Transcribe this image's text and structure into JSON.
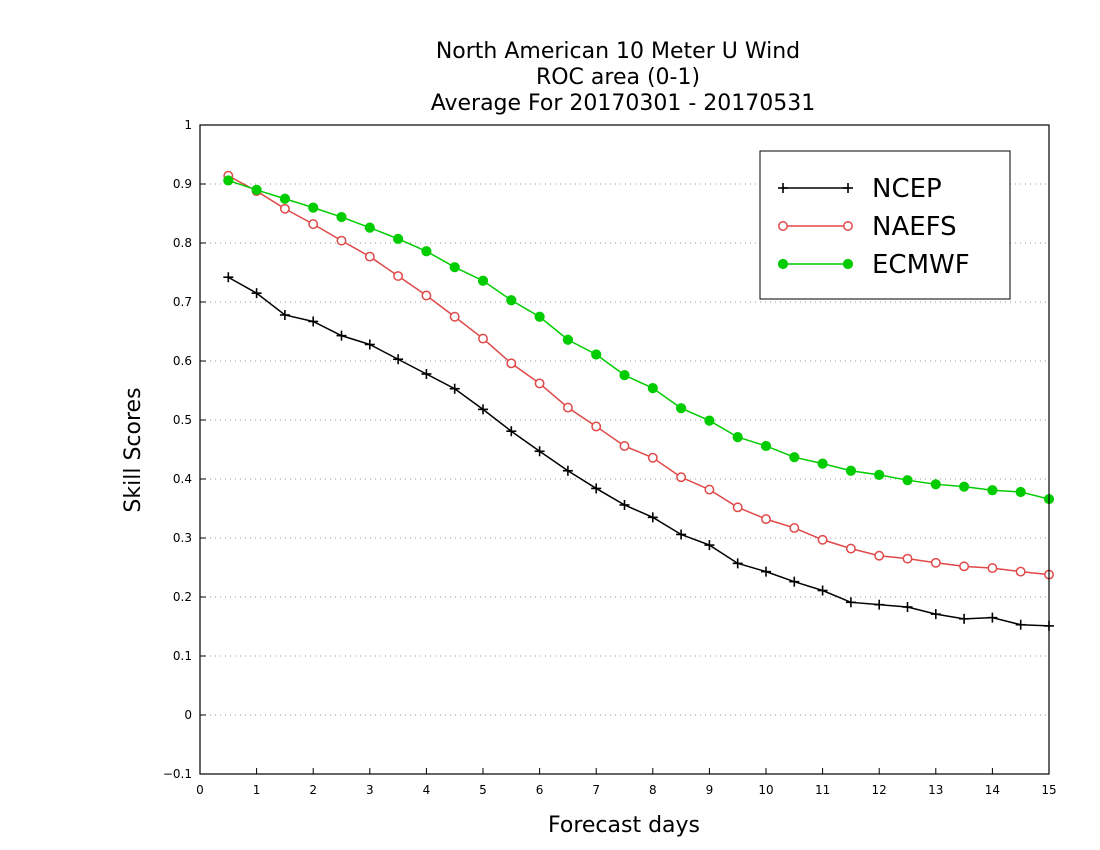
{
  "chart_data": {
    "type": "line",
    "title": "North American 10 Meter U Wind",
    "subtitle": "ROC area (0-1)",
    "subtitle2": "Average For 20170301 - 20170531",
    "xlabel": "Forecast days",
    "ylabel": "Skill Scores",
    "xlim": [
      0,
      15
    ],
    "ylim": [
      -0.1,
      1
    ],
    "xticks": [
      "0",
      "1",
      "2",
      "3",
      "4",
      "5",
      "6",
      "7",
      "8",
      "9",
      "10",
      "11",
      "12",
      "13",
      "14",
      "15"
    ],
    "yticks": [
      "−0.1",
      "0",
      "0.1",
      "0.2",
      "0.3",
      "0.4",
      "0.5",
      "0.6",
      "0.7",
      "0.8",
      "0.9",
      "1"
    ],
    "grid": "horizontal dotted",
    "legend_position": "top-right",
    "x": [
      0.5,
      1,
      1.5,
      2,
      2.5,
      3,
      3.5,
      4,
      4.5,
      5,
      5.5,
      6,
      6.5,
      7,
      7.5,
      8,
      8.5,
      9,
      9.5,
      10,
      10.5,
      11,
      11.5,
      12,
      12.5,
      13,
      13.5,
      14,
      14.5,
      15
    ],
    "series": [
      {
        "name": "NCEP",
        "color": "#000000",
        "marker": "plus",
        "values": [
          0.742,
          0.715,
          0.678,
          0.667,
          0.643,
          0.628,
          0.603,
          0.578,
          0.553,
          0.518,
          0.481,
          0.447,
          0.414,
          0.384,
          0.356,
          0.335,
          0.306,
          0.288,
          0.257,
          0.243,
          0.226,
          0.211,
          0.191,
          0.187,
          0.183,
          0.171,
          0.163,
          0.165,
          0.153,
          0.151
        ]
      },
      {
        "name": "NAEFS",
        "color": "#e04848",
        "marker": "open-circle",
        "values": [
          0.914,
          0.888,
          0.858,
          0.832,
          0.804,
          0.777,
          0.744,
          0.711,
          0.675,
          0.638,
          0.596,
          0.562,
          0.521,
          0.489,
          0.456,
          0.436,
          0.403,
          0.382,
          0.352,
          0.332,
          0.317,
          0.297,
          0.282,
          0.27,
          0.265,
          0.258,
          0.252,
          0.249,
          0.243,
          0.238
        ]
      },
      {
        "name": "ECMWF",
        "color": "#00cc00",
        "marker": "filled-circle",
        "values": [
          0.906,
          0.89,
          0.875,
          0.86,
          0.844,
          0.826,
          0.807,
          0.786,
          0.759,
          0.736,
          0.703,
          0.675,
          0.636,
          0.611,
          0.576,
          0.554,
          0.52,
          0.499,
          0.471,
          0.456,
          0.437,
          0.426,
          0.414,
          0.407,
          0.398,
          0.391,
          0.387,
          0.381,
          0.378,
          0.366
        ]
      }
    ]
  }
}
